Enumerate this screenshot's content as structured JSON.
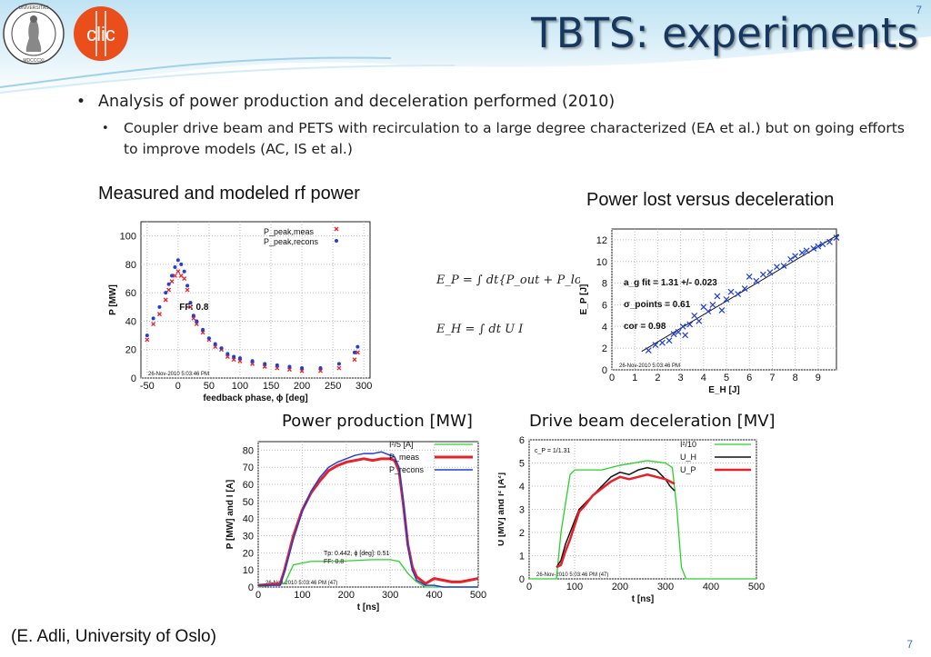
{
  "slide": {
    "title": "TBTS: experiments",
    "page_number_top": "7",
    "page_number": "7",
    "bullet1": "Analysis of power production and deceleration performed (2010)",
    "bullet2": "Coupler drive beam and PETS with recirculation to a large degree characterized (EA et al.) but on going efforts to improve models (AC, IS et al.)",
    "caption_left": "Measured and modeled rf power",
    "caption_right": "Power lost versus deceleration",
    "caption_bottom_left": "Power production [MW]",
    "caption_bottom_right": "Drive beam deceleration [MV]",
    "footer": "(E. Adli, University of Oslo)",
    "logo_clic_text": "CLIC",
    "logo_uio_text": "UNIVERSITAS OSLOENSIS MDCCCXI"
  },
  "equations": {
    "ep": "E_P = ∫ dt{P_out + P_lost}",
    "eh": "E_H = ∫ dt U I"
  },
  "chart_data": [
    {
      "type": "scatter",
      "xlabel": "feedback phase, ϕ [deg]",
      "ylabel": "P [MW]",
      "xlim": [
        -60,
        310
      ],
      "ylim": [
        0,
        110
      ],
      "xticks": [
        "-50",
        "0",
        "50",
        "100",
        "150",
        "200",
        "250",
        "300"
      ],
      "yticks": [
        "0",
        "20",
        "40",
        "60",
        "80",
        "100"
      ],
      "annotation": "FF: 0.8",
      "timestamp": "26-Nov-2010   5:03:46 PM",
      "colors": {
        "meas": "#e8202a",
        "recons": "#1f3fd6"
      },
      "series": [
        {
          "name": "P_peak,meas",
          "x": [
            -50,
            -40,
            -30,
            -20,
            -15,
            -10,
            -5,
            0,
            5,
            10,
            15,
            20,
            25,
            30,
            40,
            50,
            60,
            70,
            80,
            90,
            100,
            120,
            140,
            160,
            180,
            200,
            230,
            260,
            285,
            290
          ],
          "y": [
            27,
            38,
            45,
            55,
            62,
            68,
            72,
            75,
            72,
            70,
            62,
            50,
            42,
            38,
            32,
            27,
            22,
            20,
            15,
            13,
            12,
            10,
            8,
            7,
            6,
            5,
            5,
            7,
            13,
            18
          ]
        },
        {
          "name": "P_peak,recons",
          "x": [
            -50,
            -40,
            -30,
            -20,
            -15,
            -10,
            -5,
            0,
            5,
            10,
            15,
            20,
            25,
            30,
            40,
            50,
            60,
            70,
            80,
            90,
            100,
            120,
            140,
            160,
            180,
            200,
            230,
            260,
            285,
            290
          ],
          "y": [
            30,
            42,
            50,
            60,
            66,
            72,
            78,
            83,
            80,
            75,
            65,
            53,
            44,
            40,
            34,
            28,
            24,
            21,
            17,
            15,
            14,
            12,
            10,
            9,
            8,
            7,
            7,
            10,
            18,
            22
          ]
        }
      ]
    },
    {
      "type": "scatter",
      "xlabel": "E_H [J]",
      "ylabel": "E_P [J]",
      "xlim": [
        0,
        9.8
      ],
      "ylim": [
        0,
        13
      ],
      "xticks": [
        "0",
        "1",
        "2",
        "3",
        "4",
        "5",
        "6",
        "7",
        "8",
        "9"
      ],
      "yticks": [
        "0",
        "2",
        "4",
        "6",
        "8",
        "10",
        "12"
      ],
      "annotations": [
        "a_g fit = 1.31 +/- 0.023",
        "σ_points = 0.61",
        "cor = 0.98"
      ],
      "timestamp": "26-Nov-2010   5:03:46 PM",
      "fit": {
        "x": [
          1.3,
          9.9
        ],
        "y": [
          1.7,
          12.5
        ]
      },
      "series": [
        {
          "name": "points",
          "x": [
            1.6,
            1.9,
            2.2,
            2.5,
            2.7,
            2.9,
            3.1,
            3.2,
            3.4,
            3.6,
            3.8,
            4.0,
            4.2,
            4.4,
            4.6,
            4.8,
            5.0,
            5.2,
            5.5,
            5.8,
            6.0,
            6.3,
            6.6,
            6.9,
            7.2,
            7.5,
            7.8,
            8.0,
            8.3,
            8.5,
            8.8,
            9.0,
            9.2,
            9.5,
            9.8
          ],
          "y": [
            1.8,
            2.3,
            2.5,
            2.7,
            3.3,
            3.5,
            4.0,
            3.2,
            4.2,
            5.0,
            4.5,
            5.8,
            5.4,
            6.0,
            6.8,
            5.5,
            6.5,
            7.2,
            7.0,
            7.5,
            8.6,
            8.2,
            8.8,
            9.0,
            9.5,
            9.6,
            10.2,
            10.5,
            10.8,
            11.0,
            11.2,
            11.4,
            11.6,
            11.8,
            12.2
          ]
        }
      ]
    },
    {
      "type": "line",
      "xlabel": "t [ns]",
      "ylabel": "P [MW]  and  I [A]",
      "xlim": [
        0,
        500
      ],
      "ylim": [
        0,
        85
      ],
      "xticks": [
        "0",
        "100",
        "200",
        "300",
        "400",
        "500"
      ],
      "yticks": [
        "0",
        "10",
        "20",
        "30",
        "40",
        "50",
        "60",
        "70",
        "80"
      ],
      "annotations": [
        "Tp: 0.442,  ϕ [deg]: 0.51",
        "FF: 0.8"
      ],
      "timestamp": "26-Nov-2010   5:03:46 PM (47)",
      "series": [
        {
          "name": "I²/5 [A]",
          "color": "#2bd12b",
          "x": [
            0,
            60,
            80,
            120,
            180,
            260,
            300,
            320,
            340,
            360,
            380,
            420,
            500
          ],
          "y": [
            0,
            2,
            13,
            15,
            15,
            16,
            16,
            15,
            8,
            3,
            0,
            0,
            0
          ]
        },
        {
          "name": "P_meas",
          "color": "#e8202a",
          "x": [
            0,
            50,
            60,
            80,
            100,
            120,
            140,
            160,
            180,
            200,
            220,
            240,
            260,
            280,
            300,
            310,
            320,
            330,
            340,
            350,
            360,
            380,
            400,
            420,
            440,
            460,
            480,
            500
          ],
          "y": [
            1,
            2,
            10,
            30,
            45,
            55,
            62,
            68,
            71,
            73,
            74,
            75,
            74,
            75,
            75,
            74,
            68,
            48,
            25,
            12,
            6,
            2,
            5,
            4,
            3,
            3,
            4,
            5
          ]
        },
        {
          "name": "P_recons",
          "color": "#1f3fd6",
          "x": [
            0,
            50,
            60,
            80,
            100,
            120,
            140,
            160,
            180,
            200,
            220,
            240,
            260,
            280,
            300,
            310,
            320,
            330,
            340,
            350,
            360,
            380,
            400,
            420,
            440,
            460,
            480,
            500
          ],
          "y": [
            1,
            1,
            9,
            28,
            44,
            56,
            64,
            70,
            73,
            75,
            77,
            78,
            78,
            79,
            77,
            76,
            70,
            50,
            24,
            10,
            4,
            1,
            1,
            0,
            0,
            0,
            0,
            0
          ]
        }
      ]
    },
    {
      "type": "line",
      "xlabel": "t [ns]",
      "ylabel": "U [MV]  and  I² [A²]",
      "xlim": [
        0,
        500
      ],
      "ylim": [
        0,
        6
      ],
      "xticks": [
        "0",
        "100",
        "200",
        "300",
        "400",
        "500"
      ],
      "yticks": [
        "0",
        "1",
        "2",
        "3",
        "4",
        "5",
        "6"
      ],
      "annotation": "c_P = 1/1.31",
      "timestamp": "26-Nov-2010   5:03:46 PM (47)",
      "series": [
        {
          "name": "I²/10",
          "color": "#2bd12b",
          "x": [
            0,
            60,
            70,
            90,
            100,
            120,
            160,
            200,
            260,
            300,
            315,
            325,
            335,
            345,
            400,
            500
          ],
          "y": [
            0,
            0,
            2,
            4.5,
            4.7,
            4.7,
            4.7,
            4.9,
            5.1,
            5.0,
            4.8,
            3,
            0.5,
            0,
            0,
            0
          ]
        },
        {
          "name": "U_H",
          "color": "#111111",
          "x": [
            60,
            70,
            80,
            90,
            100,
            110,
            120,
            140,
            160,
            180,
            200,
            220,
            240,
            260,
            280,
            300,
            310,
            320
          ],
          "y": [
            0.5,
            0.8,
            1.5,
            2.0,
            2.5,
            3.0,
            3.2,
            3.6,
            4.0,
            4.4,
            4.6,
            4.5,
            4.7,
            4.8,
            4.7,
            4.3,
            4.0,
            3.8
          ]
        },
        {
          "name": "U_P",
          "color": "#e8202a",
          "x": [
            60,
            70,
            80,
            90,
            100,
            110,
            120,
            140,
            160,
            180,
            200,
            220,
            240,
            260,
            280,
            300,
            310,
            320
          ],
          "y": [
            0.5,
            0.6,
            1.2,
            1.7,
            2.3,
            2.9,
            3.1,
            3.6,
            3.9,
            4.2,
            4.4,
            4.3,
            4.4,
            4.5,
            4.4,
            4.3,
            4.2,
            4.1
          ]
        }
      ]
    }
  ]
}
